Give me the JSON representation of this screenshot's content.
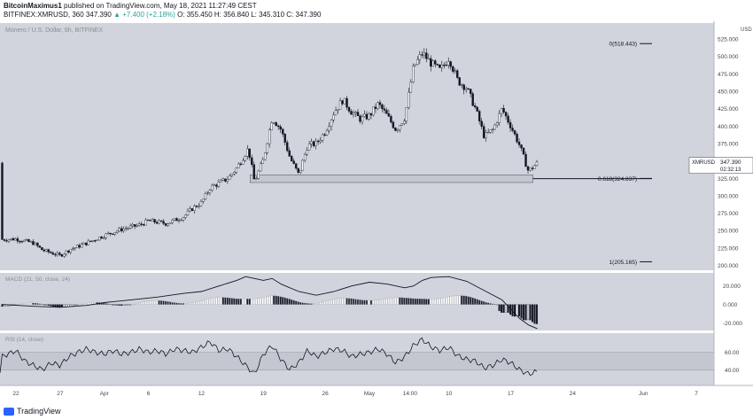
{
  "header": {
    "author": "BitcoinMaximus1",
    "published": "published on TradingView.com, May 18, 2021 11:27:49 CEST",
    "symbol_line": "BITFINEX:XMRUSD, 360",
    "last": "347.390",
    "change": "▲ +7.400 (+2.18%)",
    "ohlc": "O: 355.450  H: 356.840  L: 345.310  C: 347.390"
  },
  "footer": {
    "brand": "TradingView"
  },
  "colors": {
    "panel": "#d1d4dc",
    "candle": "#131722",
    "text": "#434651"
  },
  "chart_data": [
    {
      "type": "candlestick",
      "title": "Monero / U.S. Dollar, 6h, BITFINEX",
      "currency_label": "USD",
      "y_ticks": [
        "200.000",
        "225.000",
        "250.000",
        "275.000",
        "300.000",
        "325.000",
        "350.000",
        "375.000",
        "400.000",
        "425.000",
        "450.000",
        "475.000",
        "500.000",
        "525.000"
      ],
      "ylim": [
        193,
        548
      ],
      "x_ticks": [
        {
          "label": "22",
          "d": 0
        },
        {
          "label": "27",
          "d": 5
        },
        {
          "label": "Apr",
          "d": 10
        },
        {
          "label": "6",
          "d": 15
        },
        {
          "label": "12",
          "d": 21
        },
        {
          "label": "19",
          "d": 28
        },
        {
          "label": "26",
          "d": 35
        },
        {
          "label": "May",
          "d": 40
        },
        {
          "label": "14:00",
          "d": 44.6
        },
        {
          "label": "10",
          "d": 49
        },
        {
          "label": "17",
          "d": 56
        },
        {
          "label": "24",
          "d": 63
        },
        {
          "label": "Jun",
          "d": 71
        },
        {
          "label": "7",
          "d": 77
        }
      ],
      "xlim": [
        -1.8,
        79
      ],
      "price_label": {
        "symbol": "XMRUSD",
        "price": "347.390",
        "countdown": "02:32:13",
        "value": 347.39
      },
      "fib_levels": [
        {
          "label": "0(518.443)",
          "value": 518.443
        },
        {
          "label": "0.618(324.837)",
          "value": 324.837
        },
        {
          "label": "1(205.165)",
          "value": 205.165
        }
      ],
      "support_zone": {
        "from_day": 26.5,
        "to_day": 58.5,
        "low": 319,
        "high": 330
      },
      "close_path": [
        [
          -1.6,
          237
        ],
        [
          0,
          238
        ],
        [
          2,
          232
        ],
        [
          3,
          222
        ],
        [
          5,
          214
        ],
        [
          6,
          222
        ],
        [
          8,
          232
        ],
        [
          10,
          243
        ],
        [
          12,
          252
        ],
        [
          14,
          258
        ],
        [
          15,
          264
        ],
        [
          17,
          260
        ],
        [
          19,
          270
        ],
        [
          20,
          282
        ],
        [
          21,
          290
        ],
        [
          22,
          312
        ],
        [
          23,
          318
        ],
        [
          24,
          325
        ],
        [
          25,
          340
        ],
        [
          26.3,
          368
        ],
        [
          27,
          320
        ],
        [
          28,
          352
        ],
        [
          29,
          412
        ],
        [
          30,
          395
        ],
        [
          31,
          355
        ],
        [
          32,
          330
        ],
        [
          33,
          372
        ],
        [
          34,
          375
        ],
        [
          35,
          392
        ],
        [
          36,
          420
        ],
        [
          37,
          438
        ],
        [
          38,
          420
        ],
        [
          39,
          410
        ],
        [
          40,
          415
        ],
        [
          41,
          432
        ],
        [
          42,
          415
        ],
        [
          43,
          395
        ],
        [
          44,
          412
        ],
        [
          45,
          485
        ],
        [
          46,
          505
        ],
        [
          47,
          490
        ],
        [
          48,
          480
        ],
        [
          49,
          498
        ],
        [
          50,
          465
        ],
        [
          51,
          455
        ],
        [
          52,
          425
        ],
        [
          53,
          385
        ],
        [
          54,
          395
        ],
        [
          55,
          425
        ],
        [
          56,
          400
        ],
        [
          57,
          372
        ],
        [
          58,
          335
        ],
        [
          59,
          347
        ]
      ]
    },
    {
      "type": "macd",
      "title": "MACD (21, 50, close, 24)",
      "y_ticks": [
        "20.000",
        "0.000",
        "-20.000"
      ],
      "ylim": [
        -28,
        34
      ],
      "macd_path": [
        [
          -1.6,
          0
        ],
        [
          2,
          -2
        ],
        [
          5,
          -3
        ],
        [
          8,
          -1
        ],
        [
          10,
          2
        ],
        [
          13,
          5
        ],
        [
          16,
          8
        ],
        [
          19,
          12
        ],
        [
          21,
          14
        ],
        [
          23,
          20
        ],
        [
          25,
          26
        ],
        [
          26,
          30
        ],
        [
          27,
          28
        ],
        [
          28,
          26
        ],
        [
          29,
          28
        ],
        [
          30,
          22
        ],
        [
          32,
          14
        ],
        [
          34,
          10
        ],
        [
          36,
          14
        ],
        [
          38,
          20
        ],
        [
          40,
          24
        ],
        [
          42,
          22
        ],
        [
          44,
          18
        ],
        [
          45,
          20
        ],
        [
          46,
          26
        ],
        [
          47,
          29
        ],
        [
          49,
          30
        ],
        [
          51,
          25
        ],
        [
          53,
          15
        ],
        [
          55,
          5
        ],
        [
          56,
          -5
        ],
        [
          57,
          -15
        ],
        [
          58,
          -22
        ],
        [
          59,
          -26
        ]
      ]
    },
    {
      "type": "rsi",
      "title": "RSI (14, close)",
      "y_ticks": [
        "60.00",
        "40.00"
      ],
      "ylim": [
        22,
        82
      ],
      "band": [
        40,
        60
      ],
      "rsi_path": [
        [
          -1.6,
          55
        ],
        [
          0,
          62
        ],
        [
          1,
          50
        ],
        [
          2,
          45
        ],
        [
          3,
          40
        ],
        [
          4,
          48
        ],
        [
          5,
          45
        ],
        [
          6,
          55
        ],
        [
          7,
          60
        ],
        [
          8,
          64
        ],
        [
          9,
          60
        ],
        [
          10,
          58
        ],
        [
          11,
          62
        ],
        [
          12,
          58
        ],
        [
          13,
          60
        ],
        [
          14,
          64
        ],
        [
          15,
          60
        ],
        [
          16,
          62
        ],
        [
          17,
          58
        ],
        [
          18,
          64
        ],
        [
          19,
          62
        ],
        [
          20,
          60
        ],
        [
          21,
          66
        ],
        [
          22,
          72
        ],
        [
          23,
          62
        ],
        [
          24,
          64
        ],
        [
          25,
          55
        ],
        [
          26,
          45
        ],
        [
          27,
          35
        ],
        [
          28,
          58
        ],
        [
          29,
          68
        ],
        [
          30,
          52
        ],
        [
          31,
          40
        ],
        [
          32,
          48
        ],
        [
          33,
          62
        ],
        [
          34,
          55
        ],
        [
          35,
          60
        ],
        [
          36,
          64
        ],
        [
          37,
          62
        ],
        [
          38,
          55
        ],
        [
          39,
          58
        ],
        [
          40,
          60
        ],
        [
          41,
          64
        ],
        [
          42,
          58
        ],
        [
          43,
          48
        ],
        [
          44,
          55
        ],
        [
          45,
          68
        ],
        [
          46,
          75
        ],
        [
          47,
          66
        ],
        [
          48,
          62
        ],
        [
          49,
          66
        ],
        [
          50,
          56
        ],
        [
          51,
          52
        ],
        [
          52,
          50
        ],
        [
          53,
          42
        ],
        [
          54,
          45
        ],
        [
          55,
          52
        ],
        [
          56,
          48
        ],
        [
          57,
          40
        ],
        [
          58,
          35
        ],
        [
          59,
          38
        ]
      ]
    }
  ]
}
